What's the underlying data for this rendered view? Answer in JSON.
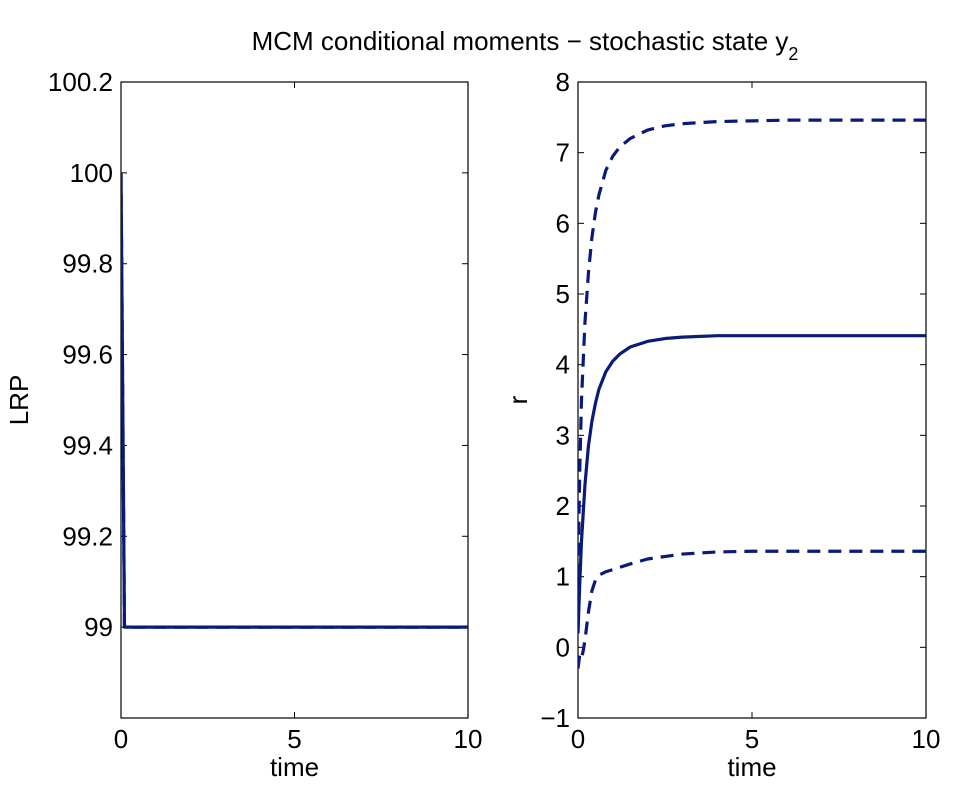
{
  "figure": {
    "title_main": "MCM conditional moments − stochastic state y",
    "title_subscript": "2"
  },
  "chart_data": [
    {
      "type": "line",
      "xlabel": "time",
      "ylabel": "LRP",
      "xlim": [
        0,
        10
      ],
      "ylim": [
        98.8,
        100.2
      ],
      "xticks": [
        0,
        5,
        10
      ],
      "yticks": [
        99,
        99.2,
        99.4,
        99.6,
        99.8,
        100,
        100.2
      ],
      "ytick_labels": [
        "99",
        "99.2",
        "99.4",
        "99.6",
        "99.8",
        "100",
        "100.2"
      ],
      "line_color": "#0a1a7a",
      "series": [
        {
          "style": "dashed",
          "x": [
            0,
            0.1,
            0.2,
            1,
            2,
            5,
            10
          ],
          "y": [
            100.0,
            99.0,
            99.0,
            99.0,
            99.0,
            99.0,
            99.0
          ]
        },
        {
          "style": "solid",
          "x": [
            0,
            0.1,
            0.2,
            1,
            2,
            5,
            10
          ],
          "y": [
            100.0,
            99.0,
            99.0,
            99.0,
            99.0,
            99.0,
            99.0
          ]
        }
      ]
    },
    {
      "type": "line",
      "xlabel": "time",
      "ylabel": "r",
      "xlim": [
        0,
        10
      ],
      "ylim": [
        -1,
        8
      ],
      "xticks": [
        0,
        5,
        10
      ],
      "yticks": [
        -1,
        0,
        1,
        2,
        3,
        4,
        5,
        6,
        7,
        8
      ],
      "ytick_labels": [
        "−1",
        "0",
        "1",
        "2",
        "3",
        "4",
        "5",
        "6",
        "7",
        "8"
      ],
      "line_color": "#0a1a7a",
      "series": [
        {
          "style": "solid",
          "x": [
            0,
            0.05,
            0.1,
            0.2,
            0.3,
            0.4,
            0.5,
            0.6,
            0.8,
            1.0,
            1.2,
            1.5,
            2.0,
            2.5,
            3.0,
            4.0,
            5.0,
            6.0,
            8.0,
            10.0
          ],
          "y": [
            0.2,
            0.9,
            1.5,
            2.3,
            2.85,
            3.2,
            3.45,
            3.65,
            3.9,
            4.05,
            4.15,
            4.25,
            4.33,
            4.37,
            4.39,
            4.41,
            4.41,
            4.41,
            4.41,
            4.41
          ]
        },
        {
          "style": "dashed",
          "x": [
            0,
            0.05,
            0.1,
            0.2,
            0.3,
            0.4,
            0.5,
            0.6,
            0.8,
            1.0,
            1.2,
            1.5,
            2.0,
            2.5,
            3.0,
            4.0,
            5.0,
            6.0,
            8.0,
            10.0
          ],
          "y": [
            1.0,
            2.5,
            3.5,
            4.6,
            5.3,
            5.8,
            6.15,
            6.4,
            6.75,
            6.95,
            7.08,
            7.2,
            7.32,
            7.38,
            7.41,
            7.44,
            7.45,
            7.46,
            7.46,
            7.46
          ]
        },
        {
          "style": "dashed",
          "x": [
            0,
            0.05,
            0.1,
            0.15,
            0.2,
            0.3,
            0.4,
            0.5,
            0.6,
            0.8,
            1.0,
            1.5,
            2.0,
            3.0,
            4.0,
            5.0,
            6.0,
            8.0,
            10.0
          ],
          "y": [
            -0.3,
            -0.1,
            -0.15,
            -0.05,
            0.1,
            0.5,
            0.8,
            0.95,
            1.02,
            1.07,
            1.1,
            1.18,
            1.25,
            1.32,
            1.35,
            1.36,
            1.36,
            1.36,
            1.36
          ]
        }
      ]
    }
  ]
}
